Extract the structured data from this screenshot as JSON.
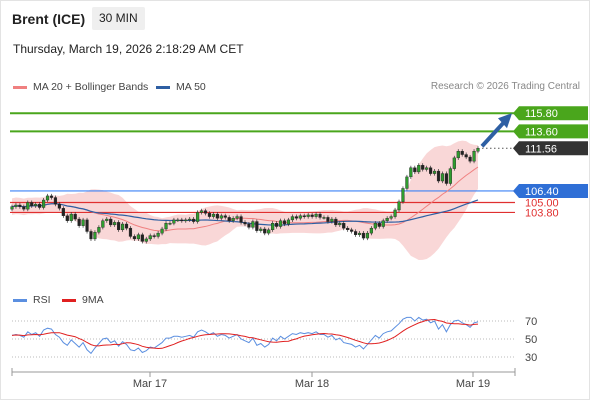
{
  "header": {
    "instrument": "Brent (ICE)",
    "timeframe": "30 MIN",
    "datetime": "Thursday, March 19, 2026 2:18:29 AM CET"
  },
  "legend": {
    "ma20_label": "MA 20 + Bollinger Bands",
    "ma50_label": "MA 50",
    "credit": "Research © 2026 Trading Central",
    "rsi_label": "RSI",
    "ma9_label": "9MA"
  },
  "colors": {
    "green": "#4aa61c",
    "blue": "#2e5fa3",
    "red": "#e03030",
    "band": "#f6c6c6",
    "ma20": "#f08080",
    "ma50": "#2e5fa3",
    "current": "#333333",
    "lightblue": "#3b82f6",
    "rsi": "#5b8fe0",
    "rsi_ma": "#e02020"
  },
  "chart_data": [
    {
      "type": "candlestick",
      "ylim": [
        96.6,
        118.0
      ],
      "x_ticks": [
        "Mar 17",
        "Mar 18",
        "Mar 19"
      ],
      "levels": [
        {
          "value": 115.8,
          "label": "115.80",
          "color": "green"
        },
        {
          "value": 113.6,
          "label": "113.60",
          "color": "green"
        },
        {
          "value": 111.56,
          "label": "111.56",
          "color": "current"
        },
        {
          "value": 106.4,
          "label": "106.40",
          "color": "lightblue"
        },
        {
          "value": 105.0,
          "label": "105.00",
          "color": "red"
        },
        {
          "value": 103.8,
          "label": "103.80",
          "color": "red"
        }
      ],
      "current_price": 111.56,
      "close": [
        104.5,
        104.7,
        104.5,
        104.2,
        105.0,
        104.6,
        104.8,
        104.4,
        105.3,
        105.8,
        105.6,
        104.8,
        104.3,
        103.4,
        102.8,
        103.6,
        103.0,
        102.2,
        102.9,
        101.5,
        100.6,
        101.4,
        102.0,
        102.8,
        103.0,
        102.3,
        102.6,
        101.7,
        102.4,
        101.9,
        100.9,
        100.6,
        101.1,
        100.3,
        100.6,
        101.0,
        100.9,
        101.3,
        101.8,
        102.5,
        102.5,
        102.9,
        102.9,
        102.8,
        102.9,
        103.0,
        102.7,
        103.8,
        104.0,
        103.7,
        103.3,
        103.6,
        103.1,
        103.4,
        103.2,
        102.8,
        103.1,
        103.3,
        102.6,
        102.4,
        102.0,
        102.7,
        101.6,
        101.8,
        101.3,
        101.7,
        102.5,
        102.1,
        102.8,
        102.4,
        102.9,
        103.3,
        103.1,
        103.4,
        103.3,
        103.5,
        103.3,
        103.6,
        103.2,
        103.2,
        102.7,
        103.0,
        102.3,
        102.5,
        101.9,
        101.7,
        101.5,
        101.1,
        101.3,
        100.7,
        101.3,
        101.9,
        102.5,
        102.1,
        102.8,
        103.1,
        103.3,
        104.1,
        105.1,
        106.7,
        108.1,
        109.2,
        108.7,
        109.5,
        109.0,
        109.2,
        108.5,
        108.8,
        107.6,
        108.5,
        107.3,
        109.1,
        110.4,
        111.2,
        110.8,
        110.5,
        110.0,
        111.2,
        111.56
      ]
    },
    {
      "type": "line",
      "name": "RSI",
      "ylim": [
        20,
        80
      ],
      "y_ticks": [
        70,
        50,
        30
      ],
      "values": [
        54,
        55,
        54,
        52,
        58,
        55,
        57,
        53,
        60,
        62,
        61,
        55,
        52,
        46,
        43,
        49,
        45,
        41,
        46,
        38,
        34,
        40,
        45,
        50,
        51,
        46,
        48,
        42,
        47,
        44,
        38,
        37,
        40,
        35,
        37,
        41,
        40,
        43,
        46,
        51,
        51,
        53,
        53,
        52,
        53,
        54,
        52,
        58,
        60,
        58,
        55,
        57,
        53,
        55,
        54,
        51,
        53,
        55,
        50,
        48,
        46,
        51,
        43,
        45,
        41,
        44,
        51,
        48,
        53,
        50,
        53,
        56,
        55,
        57,
        56,
        57,
        56,
        58,
        55,
        55,
        52,
        54,
        49,
        51,
        46,
        45,
        44,
        41,
        43,
        39,
        44,
        49,
        54,
        51,
        56,
        58,
        59,
        63,
        67,
        72,
        74,
        74,
        70,
        74,
        71,
        72,
        68,
        70,
        61,
        66,
        58,
        66,
        70,
        71,
        68,
        66,
        63,
        68,
        69
      ]
    }
  ]
}
